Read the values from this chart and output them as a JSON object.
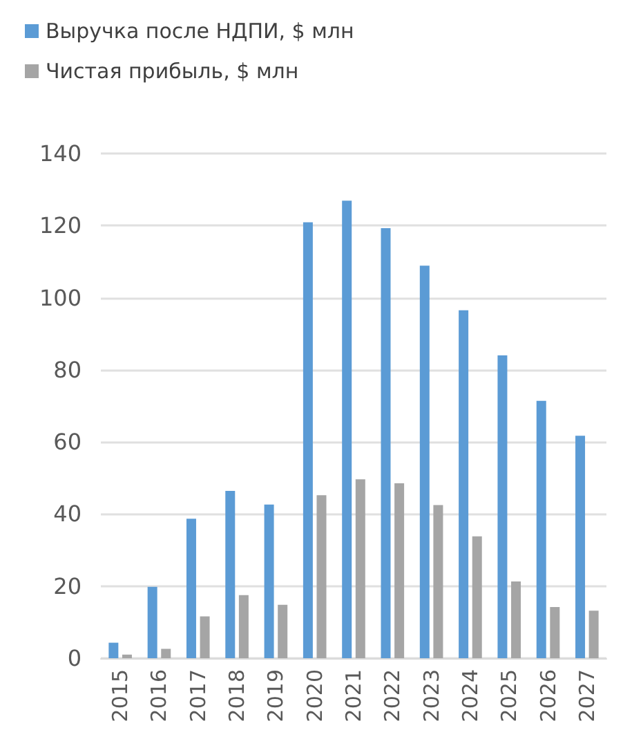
{
  "chart_data": {
    "type": "bar",
    "categories": [
      "2015",
      "2016",
      "2017",
      "2018",
      "2019",
      "2020",
      "2021",
      "2022",
      "2023",
      "2024",
      "2025",
      "2026",
      "2027"
    ],
    "series": [
      {
        "name": "Выручка после НДПИ, $ млн",
        "color": "#5b9bd5",
        "values": [
          4.3,
          19.8,
          38.7,
          46.4,
          42.6,
          120.9,
          126.9,
          119.3,
          108.9,
          96.5,
          84.0,
          71.4,
          61.7
        ]
      },
      {
        "name": "Чистая прибыль, $ млн",
        "color": "#a5a5a5",
        "values": [
          1.0,
          2.6,
          11.6,
          17.5,
          14.8,
          45.2,
          49.6,
          48.5,
          42.5,
          33.8,
          21.3,
          14.2,
          13.2
        ]
      }
    ],
    "ylim": [
      0,
      140
    ],
    "yticks": [
      0,
      20,
      40,
      60,
      80,
      100,
      120,
      140
    ],
    "grid": "y",
    "legend": "top left"
  }
}
